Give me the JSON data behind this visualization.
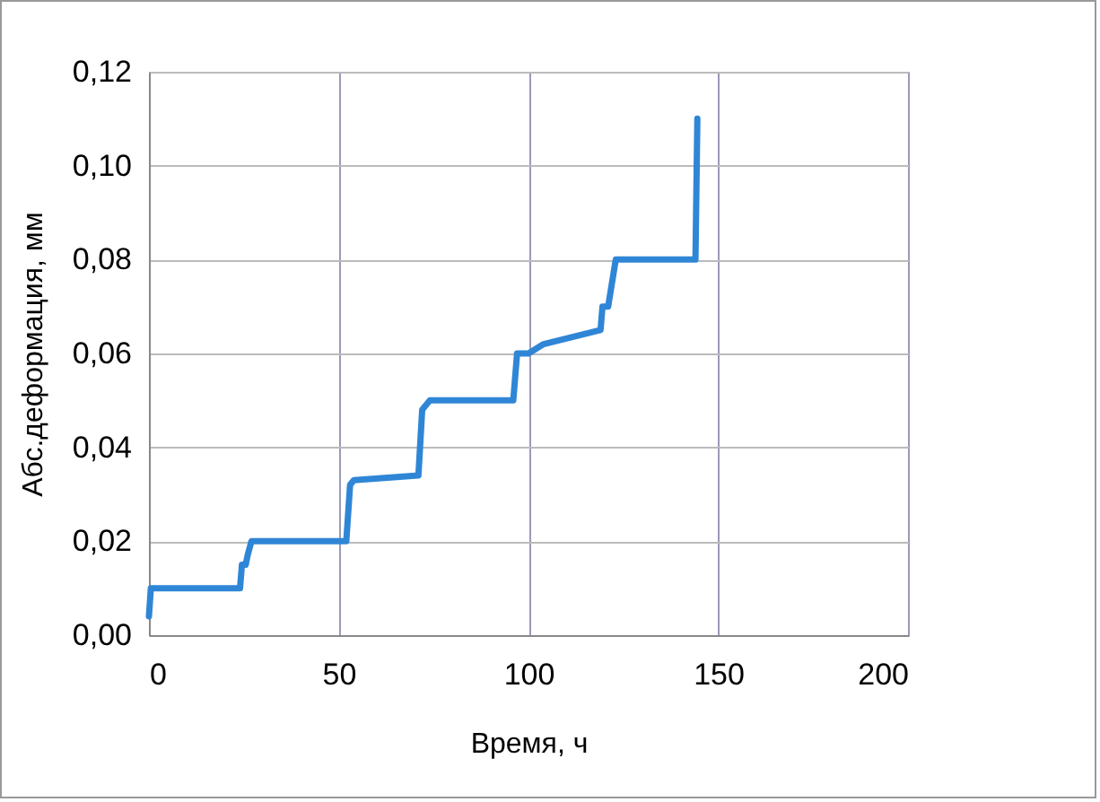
{
  "chart_data": {
    "type": "line",
    "xlabel": "Время, ч",
    "ylabel": "Абс.деформация, мм",
    "xlim": [
      0,
      200
    ],
    "xticks": [
      0,
      50,
      100,
      150,
      200
    ],
    "ylim": [
      0,
      0.12
    ],
    "yticks": [
      {
        "value": 0,
        "label": "0,00"
      },
      {
        "value": 0.02,
        "label": "0,02"
      },
      {
        "value": 0.04,
        "label": "0,04"
      },
      {
        "value": 0.06,
        "label": "0,06"
      },
      {
        "value": 0.08,
        "label": "0,08"
      },
      {
        "value": 0.1,
        "label": "0,10"
      },
      {
        "value": 0.12,
        "label": "0,12"
      }
    ],
    "grid": true,
    "marker": "none",
    "line_style": "solid",
    "series": [
      {
        "color": "#2f86d6",
        "x": [
          0,
          0.5,
          24,
          24.5,
          25.5,
          26,
          27,
          52,
          53,
          54,
          71,
          72,
          74,
          96,
          97,
          100,
          102,
          104,
          119,
          119.5,
          121,
          123,
          144,
          144.5
        ],
        "values": [
          0.004,
          0.01,
          0.01,
          0.015,
          0.015,
          0.017,
          0.02,
          0.02,
          0.032,
          0.033,
          0.034,
          0.048,
          0.05,
          0.05,
          0.06,
          0.06,
          0.061,
          0.062,
          0.065,
          0.07,
          0.07,
          0.08,
          0.08,
          0.11
        ]
      }
    ]
  }
}
